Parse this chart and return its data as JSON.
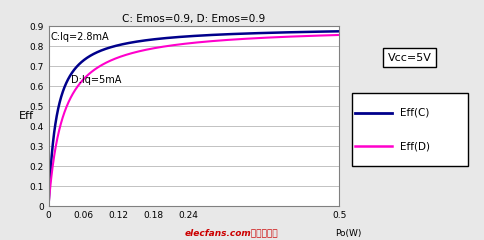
{
  "title": "C: Emos=0.9, D: Emos=0.9",
  "xlabel": "Po(W)",
  "ylabel": "Eff",
  "xlim": [
    0,
    0.5
  ],
  "ylim": [
    0,
    0.9
  ],
  "xticks": [
    0,
    0.06,
    0.12,
    0.18,
    0.24,
    0.5
  ],
  "xtick_labels": [
    "0",
    "0.06",
    "0.12",
    "0.18",
    "0.24",
    "0.5"
  ],
  "yticks": [
    0,
    0.1,
    0.2,
    0.3,
    0.4,
    0.5,
    0.6,
    0.7,
    0.8,
    0.9
  ],
  "ytick_labels": [
    "0",
    "0.1",
    "0.2",
    "0.3",
    "0.4",
    "0.5",
    "0.6",
    "0.7",
    "0.8",
    "0.9"
  ],
  "Vcc": 5,
  "Emos": 0.9,
  "Iq_C": 0.0028,
  "Iq_D": 0.005,
  "color_C": "#00008B",
  "color_D": "#FF00CC",
  "label_C": "Eff(C)",
  "label_D": "Eff(D)",
  "annotation_C": "C:Iq=2.8mA",
  "annotation_D": "D:Iq=5mA",
  "vcc_label": "Vcc=5V",
  "background_color": "#e8e8e8",
  "plot_bg_color": "#ffffff",
  "watermark": "elecfans.com电子发烧友",
  "watermark_color": "#cc0000"
}
